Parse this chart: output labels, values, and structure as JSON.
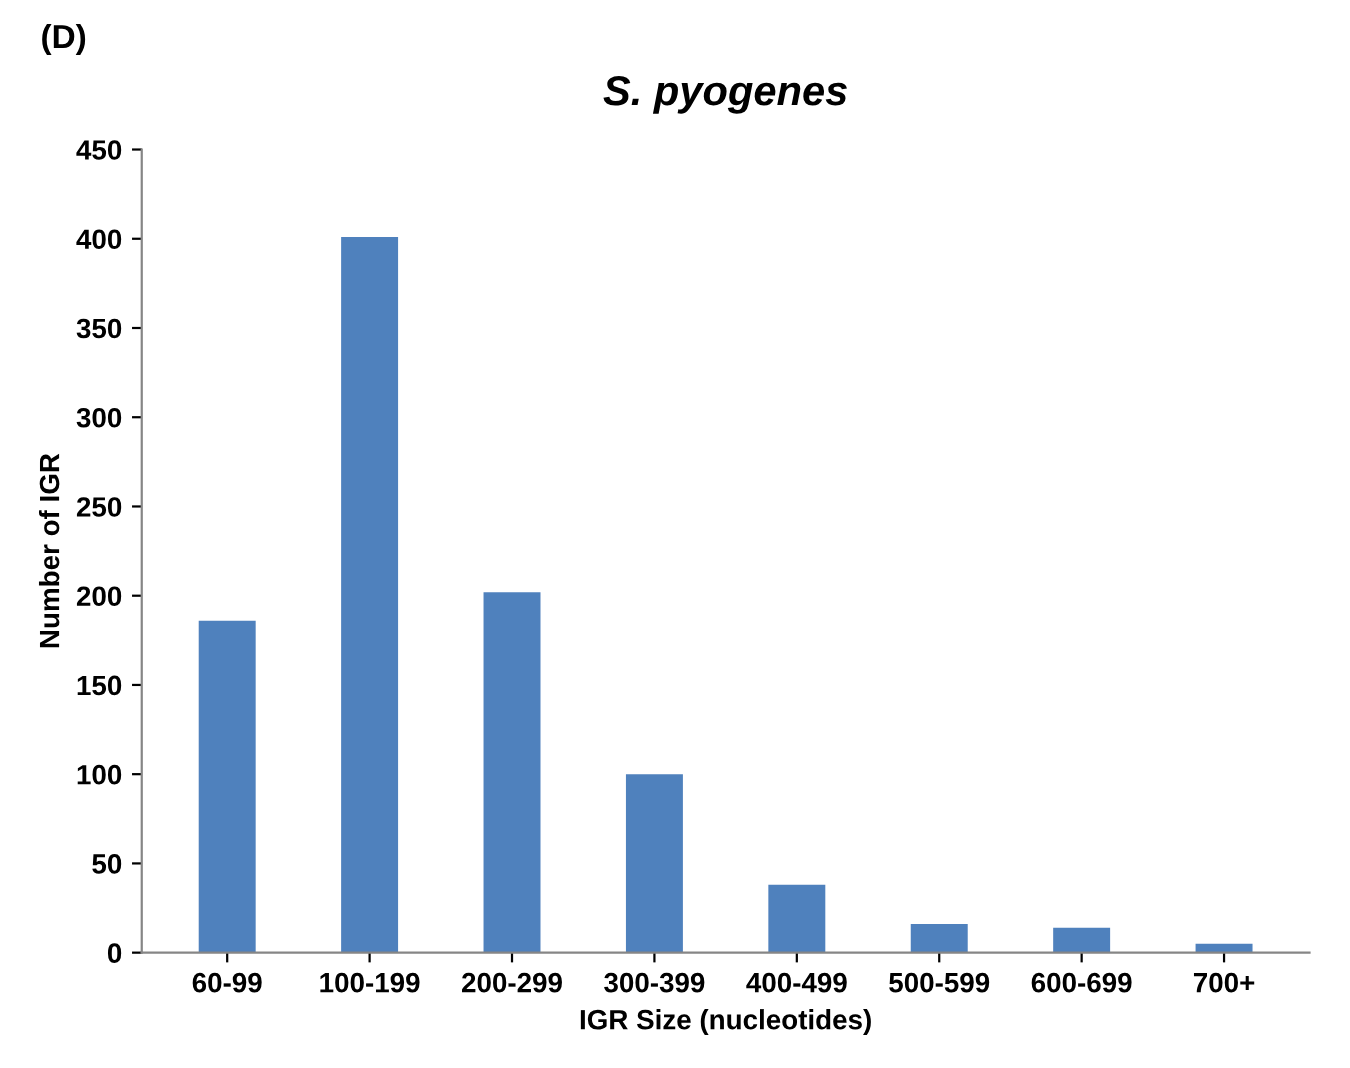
{
  "chart_data": {
    "type": "bar",
    "title": "S. pyogenes",
    "xlabel": "IGR Size (nucleotides)",
    "ylabel": "Number of IGR",
    "categories": [
      "60-99",
      "100-199",
      "200-299",
      "300-399",
      "400-499",
      "500-599",
      "600-699",
      "700+"
    ],
    "values": [
      186,
      401,
      202,
      100,
      38,
      16,
      14,
      5
    ],
    "color": "#4f81bd",
    "ylim": [
      0,
      450
    ],
    "yticks": [
      0,
      50,
      100,
      150,
      200,
      250,
      300,
      350,
      400,
      450
    ],
    "grid": false,
    "legend": false,
    "annotations": [
      "(D)"
    ]
  }
}
